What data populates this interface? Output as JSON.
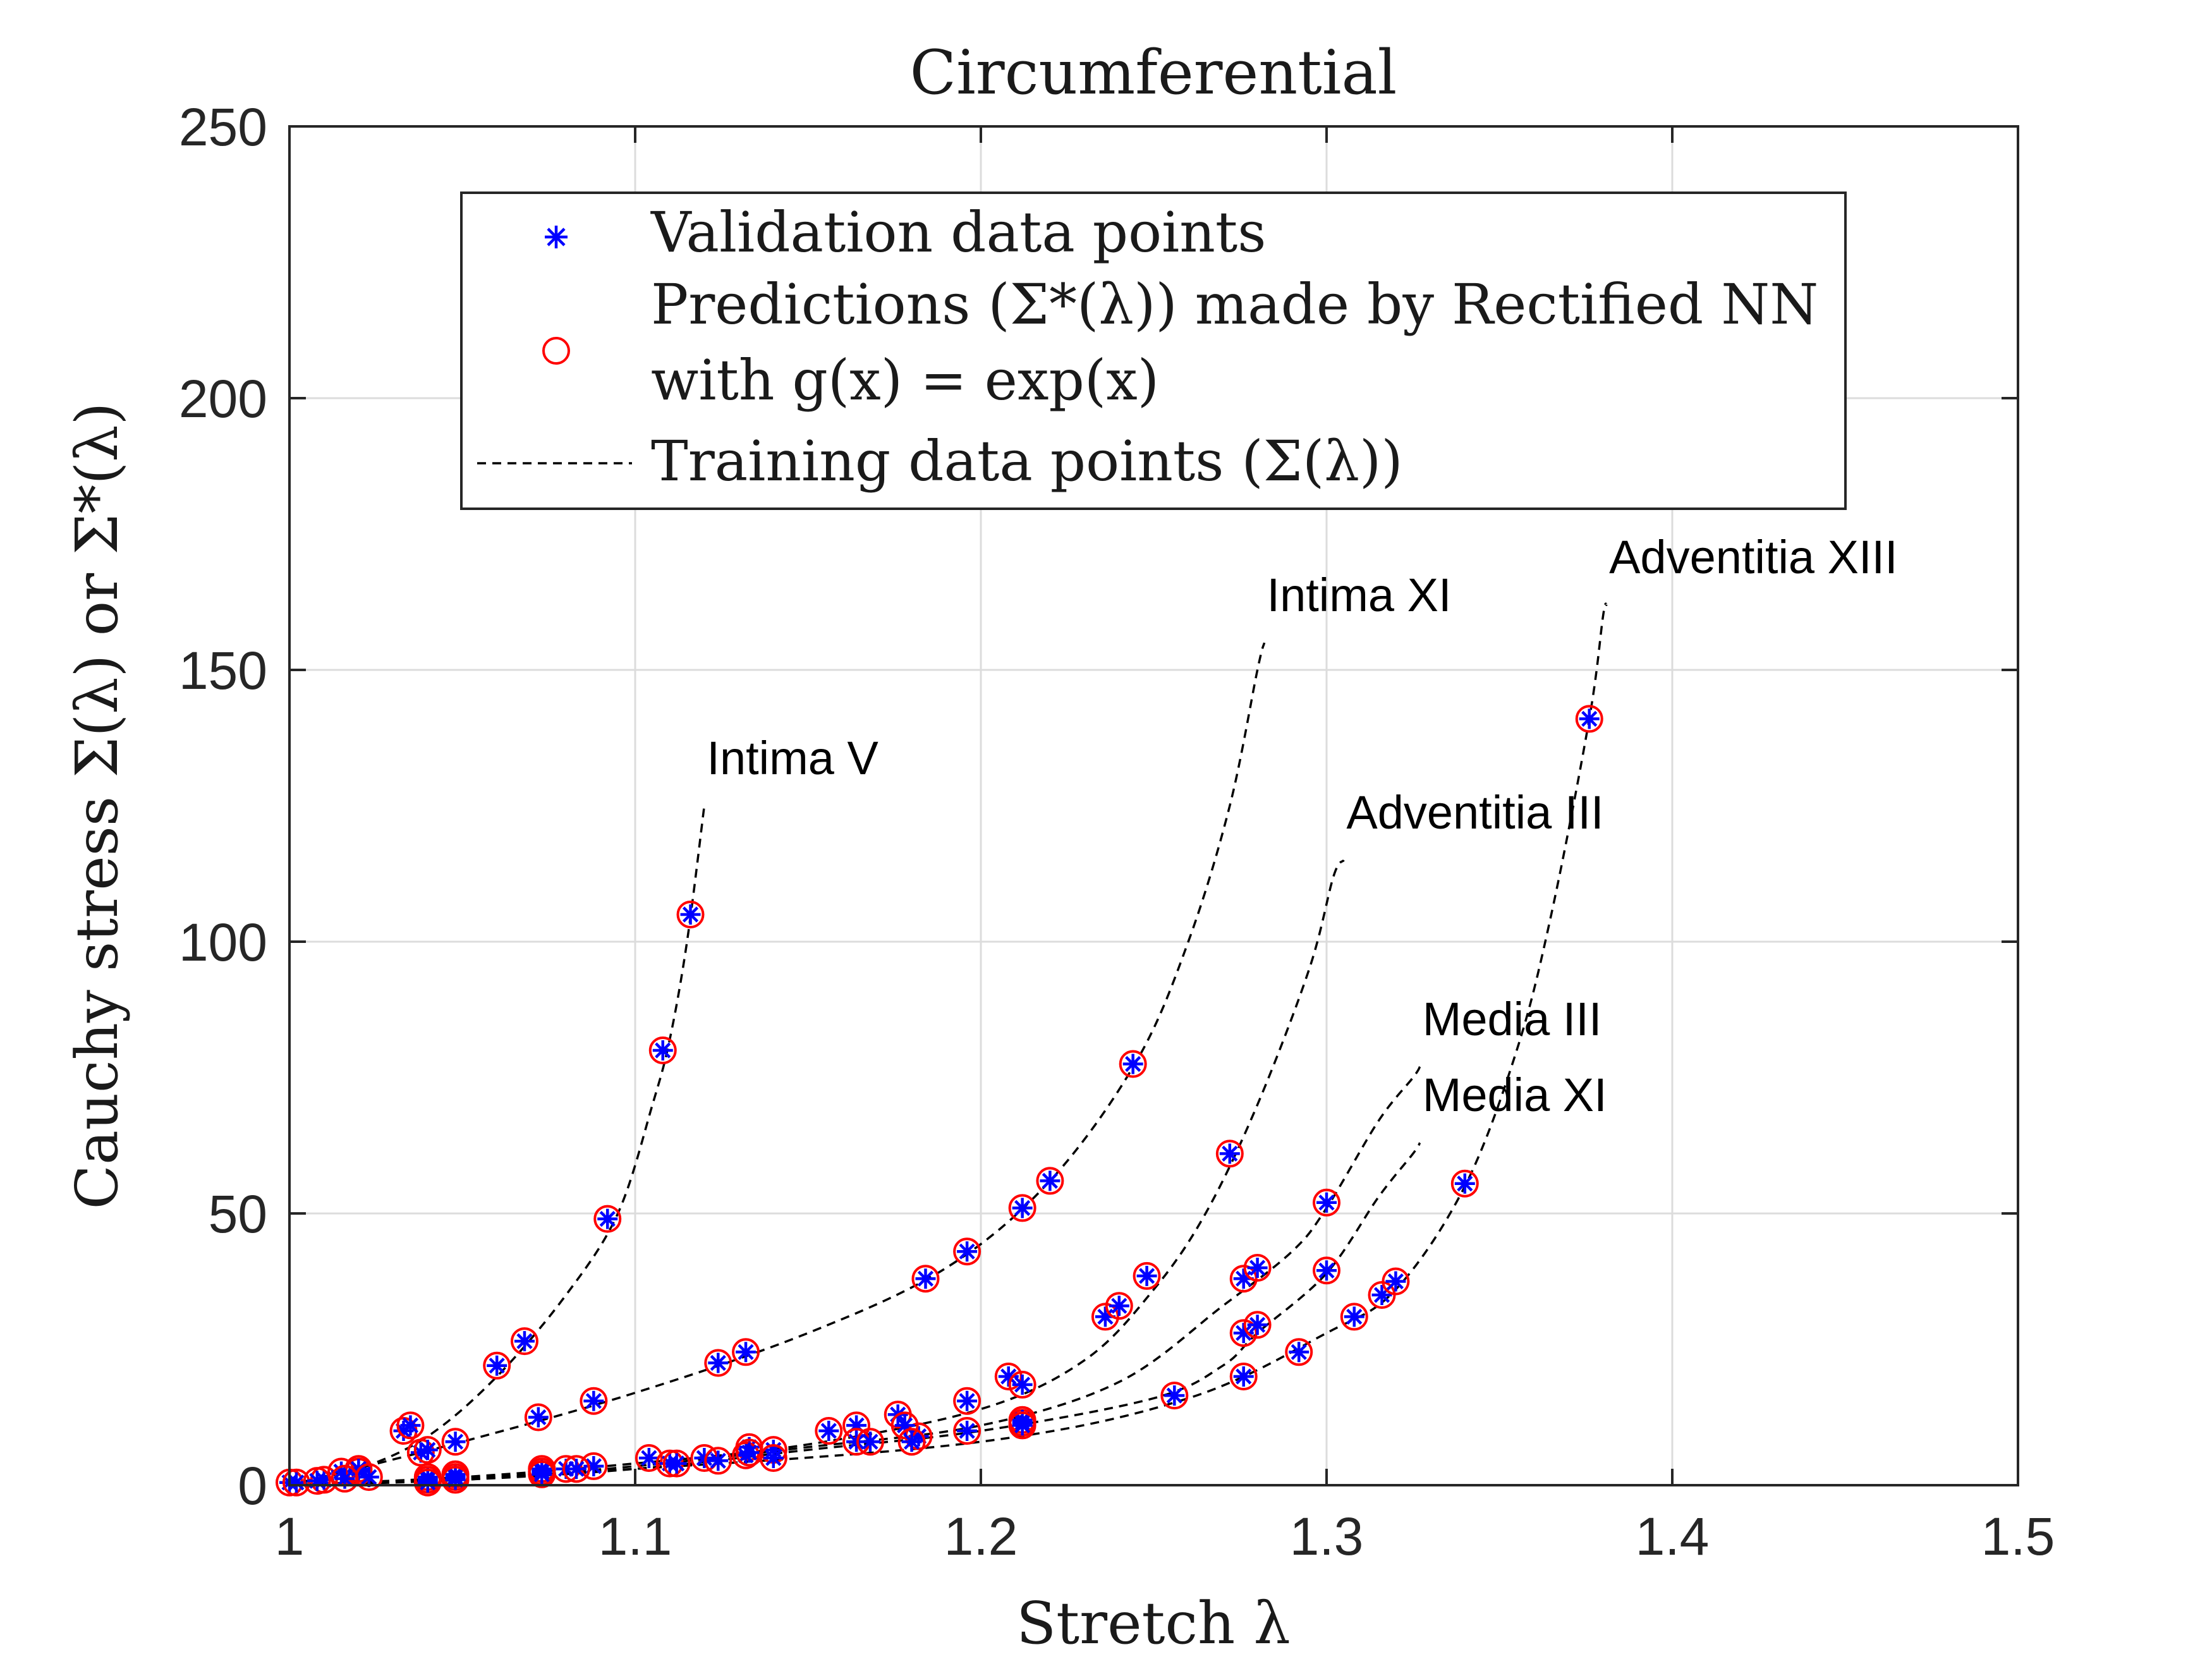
{
  "chart_data": {
    "type": "scatter",
    "title": "Circumferential",
    "xlabel": "Stretch λ",
    "ylabel": "Cauchy stress Σ(λ) or Σ*(λ)",
    "xlim": [
      1,
      1.5
    ],
    "ylim": [
      0,
      250
    ],
    "xticks": [
      "1",
      "1.1",
      "1.2",
      "1.3",
      "1.4",
      "1.5"
    ],
    "yticks": [
      "0",
      "50",
      "100",
      "150",
      "200",
      "250"
    ],
    "grid": true,
    "legend_position": "top",
    "legend": [
      {
        "label": "Validation data points",
        "marker": "asterisk",
        "color": "#0000ff"
      },
      {
        "label": "Predictions (Σ*(λ)) made by Rectified NN",
        "label2": "with g(x) = exp(x)",
        "marker": "circle",
        "color": "#ff0000"
      },
      {
        "label": "Training data points (Σ(λ))",
        "marker": "dashed-line",
        "color": "#000000"
      }
    ],
    "series": [
      {
        "name": "Intima V",
        "curve": [
          [
            1,
            0
          ],
          [
            1.02,
            3
          ],
          [
            1.04,
            9
          ],
          [
            1.06,
            20
          ],
          [
            1.08,
            35
          ],
          [
            1.095,
            50
          ],
          [
            1.105,
            70
          ],
          [
            1.11,
            82
          ],
          [
            1.115,
            100
          ],
          [
            1.12,
            125
          ]
        ],
        "points": [
          [
            1,
            0.5
          ],
          [
            1.01,
            1
          ],
          [
            1.02,
            2.5
          ],
          [
            1.033,
            10
          ],
          [
            1.035,
            11
          ],
          [
            1.06,
            22
          ],
          [
            1.068,
            26.5
          ],
          [
            1.092,
            49
          ],
          [
            1.108,
            80
          ],
          [
            1.116,
            105
          ]
        ],
        "label_anchor": [
          1.12,
          125
        ]
      },
      {
        "name": "Intima XI",
        "curve": [
          [
            1,
            0
          ],
          [
            1.05,
            8
          ],
          [
            1.1,
            17
          ],
          [
            1.15,
            28
          ],
          [
            1.19,
            40
          ],
          [
            1.22,
            56
          ],
          [
            1.245,
            78
          ],
          [
            1.26,
            100
          ],
          [
            1.272,
            125
          ],
          [
            1.28,
            150
          ],
          [
            1.282,
            155
          ]
        ],
        "points": [
          [
            1.015,
            2.5
          ],
          [
            1.02,
            3
          ],
          [
            1.038,
            6
          ],
          [
            1.04,
            6.5
          ],
          [
            1.048,
            8
          ],
          [
            1.072,
            12.5
          ],
          [
            1.088,
            15.5
          ],
          [
            1.124,
            22.5
          ],
          [
            1.132,
            24.5
          ],
          [
            1.184,
            38
          ],
          [
            1.196,
            43
          ],
          [
            1.212,
            51
          ],
          [
            1.22,
            56
          ],
          [
            1.244,
            77.5
          ]
        ],
        "label_anchor": [
          1.282,
          155
        ]
      },
      {
        "name": "Adventitia III",
        "curve": [
          [
            1,
            0
          ],
          [
            1.05,
            1.5
          ],
          [
            1.1,
            4
          ],
          [
            1.15,
            7.5
          ],
          [
            1.2,
            14
          ],
          [
            1.23,
            23
          ],
          [
            1.25,
            36
          ],
          [
            1.265,
            50
          ],
          [
            1.28,
            70
          ],
          [
            1.295,
            95
          ],
          [
            1.302,
            112
          ],
          [
            1.305,
            115
          ]
        ],
        "points": [
          [
            1.04,
            1.5
          ],
          [
            1.073,
            3
          ],
          [
            1.104,
            5
          ],
          [
            1.133,
            7
          ],
          [
            1.156,
            10
          ],
          [
            1.164,
            11
          ],
          [
            1.176,
            13
          ],
          [
            1.196,
            15.5
          ],
          [
            1.208,
            20
          ],
          [
            1.212,
            18.5
          ],
          [
            1.236,
            31
          ],
          [
            1.24,
            33
          ],
          [
            1.248,
            38.5
          ],
          [
            1.272,
            61
          ]
        ],
        "label_anchor": [
          1.305,
          115
        ]
      },
      {
        "name": "Adventitia XIII",
        "curve": [
          [
            1,
            0
          ],
          [
            1.1,
            3
          ],
          [
            1.2,
            8
          ],
          [
            1.26,
            16
          ],
          [
            1.3,
            28
          ],
          [
            1.32,
            36
          ],
          [
            1.34,
            55
          ],
          [
            1.355,
            80
          ],
          [
            1.365,
            105
          ],
          [
            1.376,
            141
          ],
          [
            1.38,
            160
          ],
          [
            1.381,
            162
          ]
        ],
        "points": [
          [
            1.002,
            0.5
          ],
          [
            1.008,
            0.8
          ],
          [
            1.016,
            1.2
          ],
          [
            1.023,
            1.5
          ],
          [
            1.048,
            2
          ],
          [
            1.08,
            3
          ],
          [
            1.11,
            4
          ],
          [
            1.132,
            5.5
          ],
          [
            1.164,
            8
          ],
          [
            1.182,
            9
          ],
          [
            1.212,
            11.5
          ],
          [
            1.256,
            16.5
          ],
          [
            1.276,
            20
          ],
          [
            1.292,
            24.5
          ],
          [
            1.308,
            31
          ],
          [
            1.316,
            35
          ],
          [
            1.32,
            37.5
          ],
          [
            1.34,
            55.5
          ],
          [
            1.376,
            141
          ]
        ],
        "label_anchor": [
          1.381,
          162
        ]
      },
      {
        "name": "Media III",
        "curve": [
          [
            1,
            0
          ],
          [
            1.05,
            1
          ],
          [
            1.1,
            3.5
          ],
          [
            1.15,
            7
          ],
          [
            1.2,
            11
          ],
          [
            1.24,
            19
          ],
          [
            1.27,
            33
          ],
          [
            1.29,
            43
          ],
          [
            1.3,
            51
          ],
          [
            1.315,
            67
          ],
          [
            1.325,
            75
          ],
          [
            1.327,
            77
          ]
        ],
        "points": [
          [
            1.04,
            1
          ],
          [
            1.048,
            1.5
          ],
          [
            1.073,
            2.5
          ],
          [
            1.088,
            3.5
          ],
          [
            1.12,
            5
          ],
          [
            1.133,
            6
          ],
          [
            1.14,
            6.5
          ],
          [
            1.178,
            11
          ],
          [
            1.212,
            12
          ],
          [
            1.276,
            38
          ],
          [
            1.28,
            40
          ],
          [
            1.3,
            52
          ]
        ],
        "label_anchor": [
          1.327,
          77
        ]
      },
      {
        "name": "Media XI",
        "curve": [
          [
            1,
            0
          ],
          [
            1.05,
            1
          ],
          [
            1.1,
            3
          ],
          [
            1.15,
            6.5
          ],
          [
            1.2,
            10
          ],
          [
            1.25,
            16
          ],
          [
            1.27,
            22
          ],
          [
            1.28,
            28
          ],
          [
            1.3,
            39
          ],
          [
            1.315,
            53
          ],
          [
            1.325,
            61
          ],
          [
            1.327,
            63
          ]
        ],
        "points": [
          [
            1.04,
            0.5
          ],
          [
            1.048,
            1
          ],
          [
            1.073,
            2
          ],
          [
            1.083,
            3
          ],
          [
            1.112,
            4
          ],
          [
            1.124,
            4.5
          ],
          [
            1.14,
            5
          ],
          [
            1.168,
            8
          ],
          [
            1.18,
            8
          ],
          [
            1.196,
            10
          ],
          [
            1.212,
            11
          ],
          [
            1.276,
            28
          ],
          [
            1.28,
            29.5
          ],
          [
            1.3,
            39.5
          ]
        ],
        "label_anchor": [
          1.327,
          63
        ]
      }
    ]
  }
}
